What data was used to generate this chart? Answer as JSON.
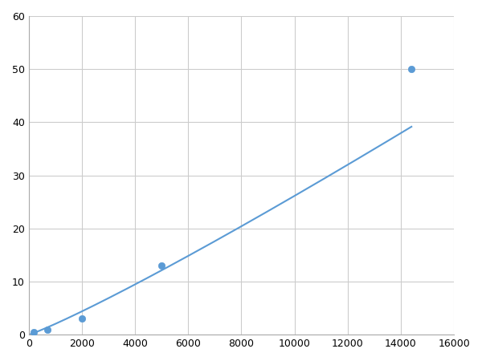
{
  "x_points": [
    200,
    700,
    2000,
    5000,
    14400
  ],
  "y_points": [
    0.5,
    1.0,
    3.0,
    13.0,
    50.0
  ],
  "line_color": "#5b9bd5",
  "marker_color": "#5b9bd5",
  "marker_size": 6,
  "line_width": 1.5,
  "xlim": [
    0,
    16000
  ],
  "ylim": [
    0,
    60
  ],
  "xticks": [
    0,
    2000,
    4000,
    6000,
    8000,
    10000,
    12000,
    14000,
    16000
  ],
  "yticks": [
    0,
    10,
    20,
    30,
    40,
    50,
    60
  ],
  "grid_color": "#cccccc",
  "grid_linewidth": 0.8,
  "background_color": "#ffffff",
  "tick_label_fontsize": 9,
  "spine_color": "#aaaaaa"
}
